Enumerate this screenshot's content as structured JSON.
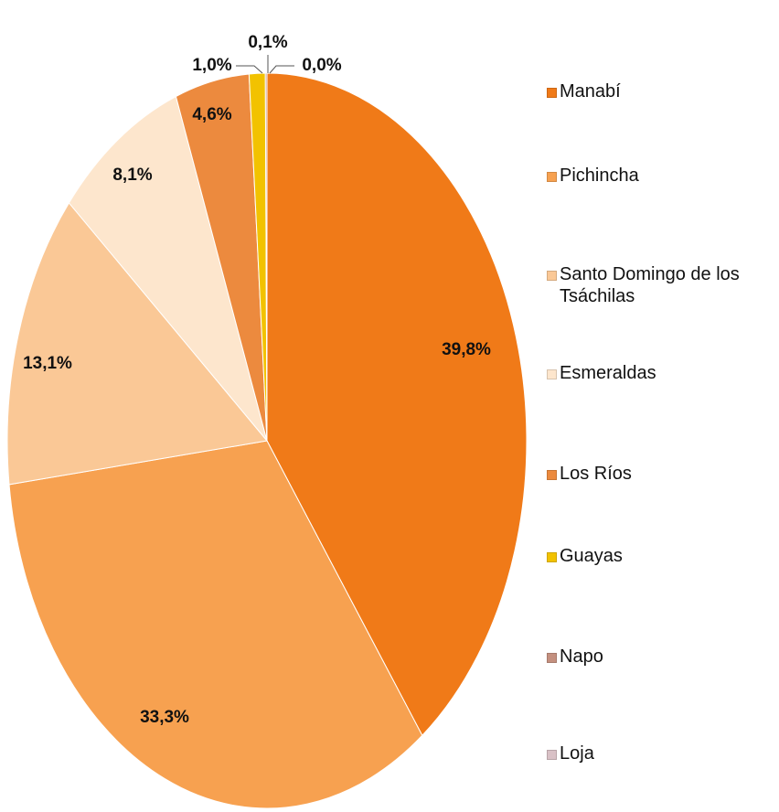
{
  "chart_data": {
    "type": "pie",
    "categories": [
      "Manabí",
      "Pichincha",
      "Santo Domingo de los Tsáchilas",
      "Esmeraldas",
      "Los Ríos",
      "Guayas",
      "Napo",
      "Loja"
    ],
    "values": [
      39.8,
      33.3,
      13.1,
      8.1,
      4.6,
      1.0,
      0.1,
      0.0
    ],
    "value_labels": [
      "39,8%",
      "33,3%",
      "13,1%",
      "8,1%",
      "4,6%",
      "1,0%",
      "0,1%",
      "0,0%"
    ],
    "colors": [
      "#f07a18",
      "#f7a150",
      "#fac896",
      "#fde6cd",
      "#ec8a3e",
      "#f2c200",
      "#c4907f",
      "#d9c1c6"
    ],
    "legend": "right"
  }
}
